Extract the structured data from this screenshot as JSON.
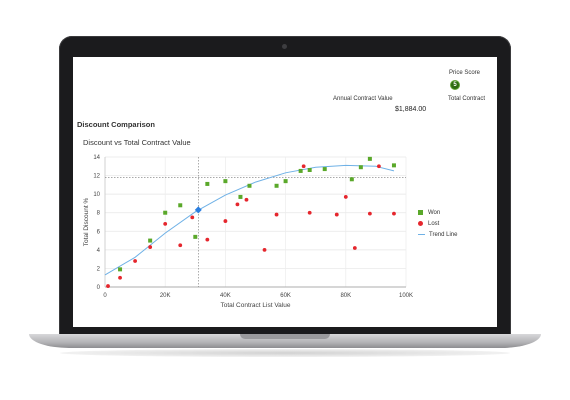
{
  "header": {
    "price_score_label": "Price Score",
    "price_score_value": "5",
    "total_contract_label": "Total Contract",
    "acv_label": "Annual Contract Value",
    "acv_value": "$1,884.00"
  },
  "section_title": "Discount Comparison",
  "colors": {
    "won": "#5aa82a",
    "lost": "#e5262d",
    "trend": "#6fb1e6",
    "highlight": "#2b7fe0",
    "score_badge": "#2f6b12"
  },
  "chart_data": {
    "type": "scatter",
    "title": "Discount vs Total Contract Value",
    "xlabel": "Total Contract List Value",
    "ylabel": "Total Discount %",
    "xlim": [
      0,
      100000
    ],
    "ylim": [
      0,
      14
    ],
    "x_ticks": [
      0,
      20000,
      40000,
      60000,
      80000,
      100000
    ],
    "x_tick_labels": [
      "0",
      "20K",
      "40K",
      "60K",
      "80K",
      "100K"
    ],
    "y_ticks": [
      0,
      2,
      4,
      6,
      8,
      10,
      12,
      14
    ],
    "y_tick_labels": [
      "0",
      "2",
      "4",
      "6",
      "8",
      "10",
      "12",
      "14"
    ],
    "grid": true,
    "legend_position": "right",
    "series": [
      {
        "name": "Won",
        "marker": "square",
        "points": [
          [
            5000,
            1.9
          ],
          [
            15000,
            5.0
          ],
          [
            20000,
            8.0
          ],
          [
            25000,
            8.8
          ],
          [
            30000,
            5.4
          ],
          [
            34000,
            11.1
          ],
          [
            40000,
            11.4
          ],
          [
            45000,
            9.7
          ],
          [
            48000,
            10.9
          ],
          [
            57000,
            10.9
          ],
          [
            60000,
            11.4
          ],
          [
            65000,
            12.5
          ],
          [
            68000,
            12.6
          ],
          [
            73000,
            12.7
          ],
          [
            82000,
            11.6
          ],
          [
            85000,
            12.9
          ],
          [
            88000,
            13.8
          ],
          [
            96000,
            13.1
          ]
        ]
      },
      {
        "name": "Lost",
        "marker": "circle",
        "points": [
          [
            1000,
            0.1
          ],
          [
            5000,
            1.0
          ],
          [
            10000,
            2.8
          ],
          [
            15000,
            4.3
          ],
          [
            20000,
            6.8
          ],
          [
            25000,
            4.5
          ],
          [
            29000,
            7.5
          ],
          [
            34000,
            5.1
          ],
          [
            40000,
            7.1
          ],
          [
            44000,
            8.9
          ],
          [
            47000,
            9.4
          ],
          [
            53000,
            4.0
          ],
          [
            57000,
            7.8
          ],
          [
            66000,
            13.0
          ],
          [
            68000,
            8.0
          ],
          [
            77000,
            7.8
          ],
          [
            80000,
            9.7
          ],
          [
            83000,
            4.2
          ],
          [
            88000,
            7.9
          ],
          [
            91000,
            13.0
          ],
          [
            96000,
            7.9
          ]
        ]
      },
      {
        "name": "Trend Line",
        "type": "line",
        "points": [
          [
            0,
            1.3
          ],
          [
            10000,
            3.2
          ],
          [
            20000,
            5.8
          ],
          [
            30000,
            8.1
          ],
          [
            40000,
            9.9
          ],
          [
            50000,
            11.3
          ],
          [
            60000,
            12.3
          ],
          [
            70000,
            12.9
          ],
          [
            80000,
            13.1
          ],
          [
            90000,
            13.0
          ],
          [
            96000,
            12.5
          ]
        ]
      }
    ],
    "highlight_point": {
      "x": 31000,
      "y": 8.3
    },
    "crosshair": {
      "x": 31000,
      "y": 11.8
    }
  }
}
